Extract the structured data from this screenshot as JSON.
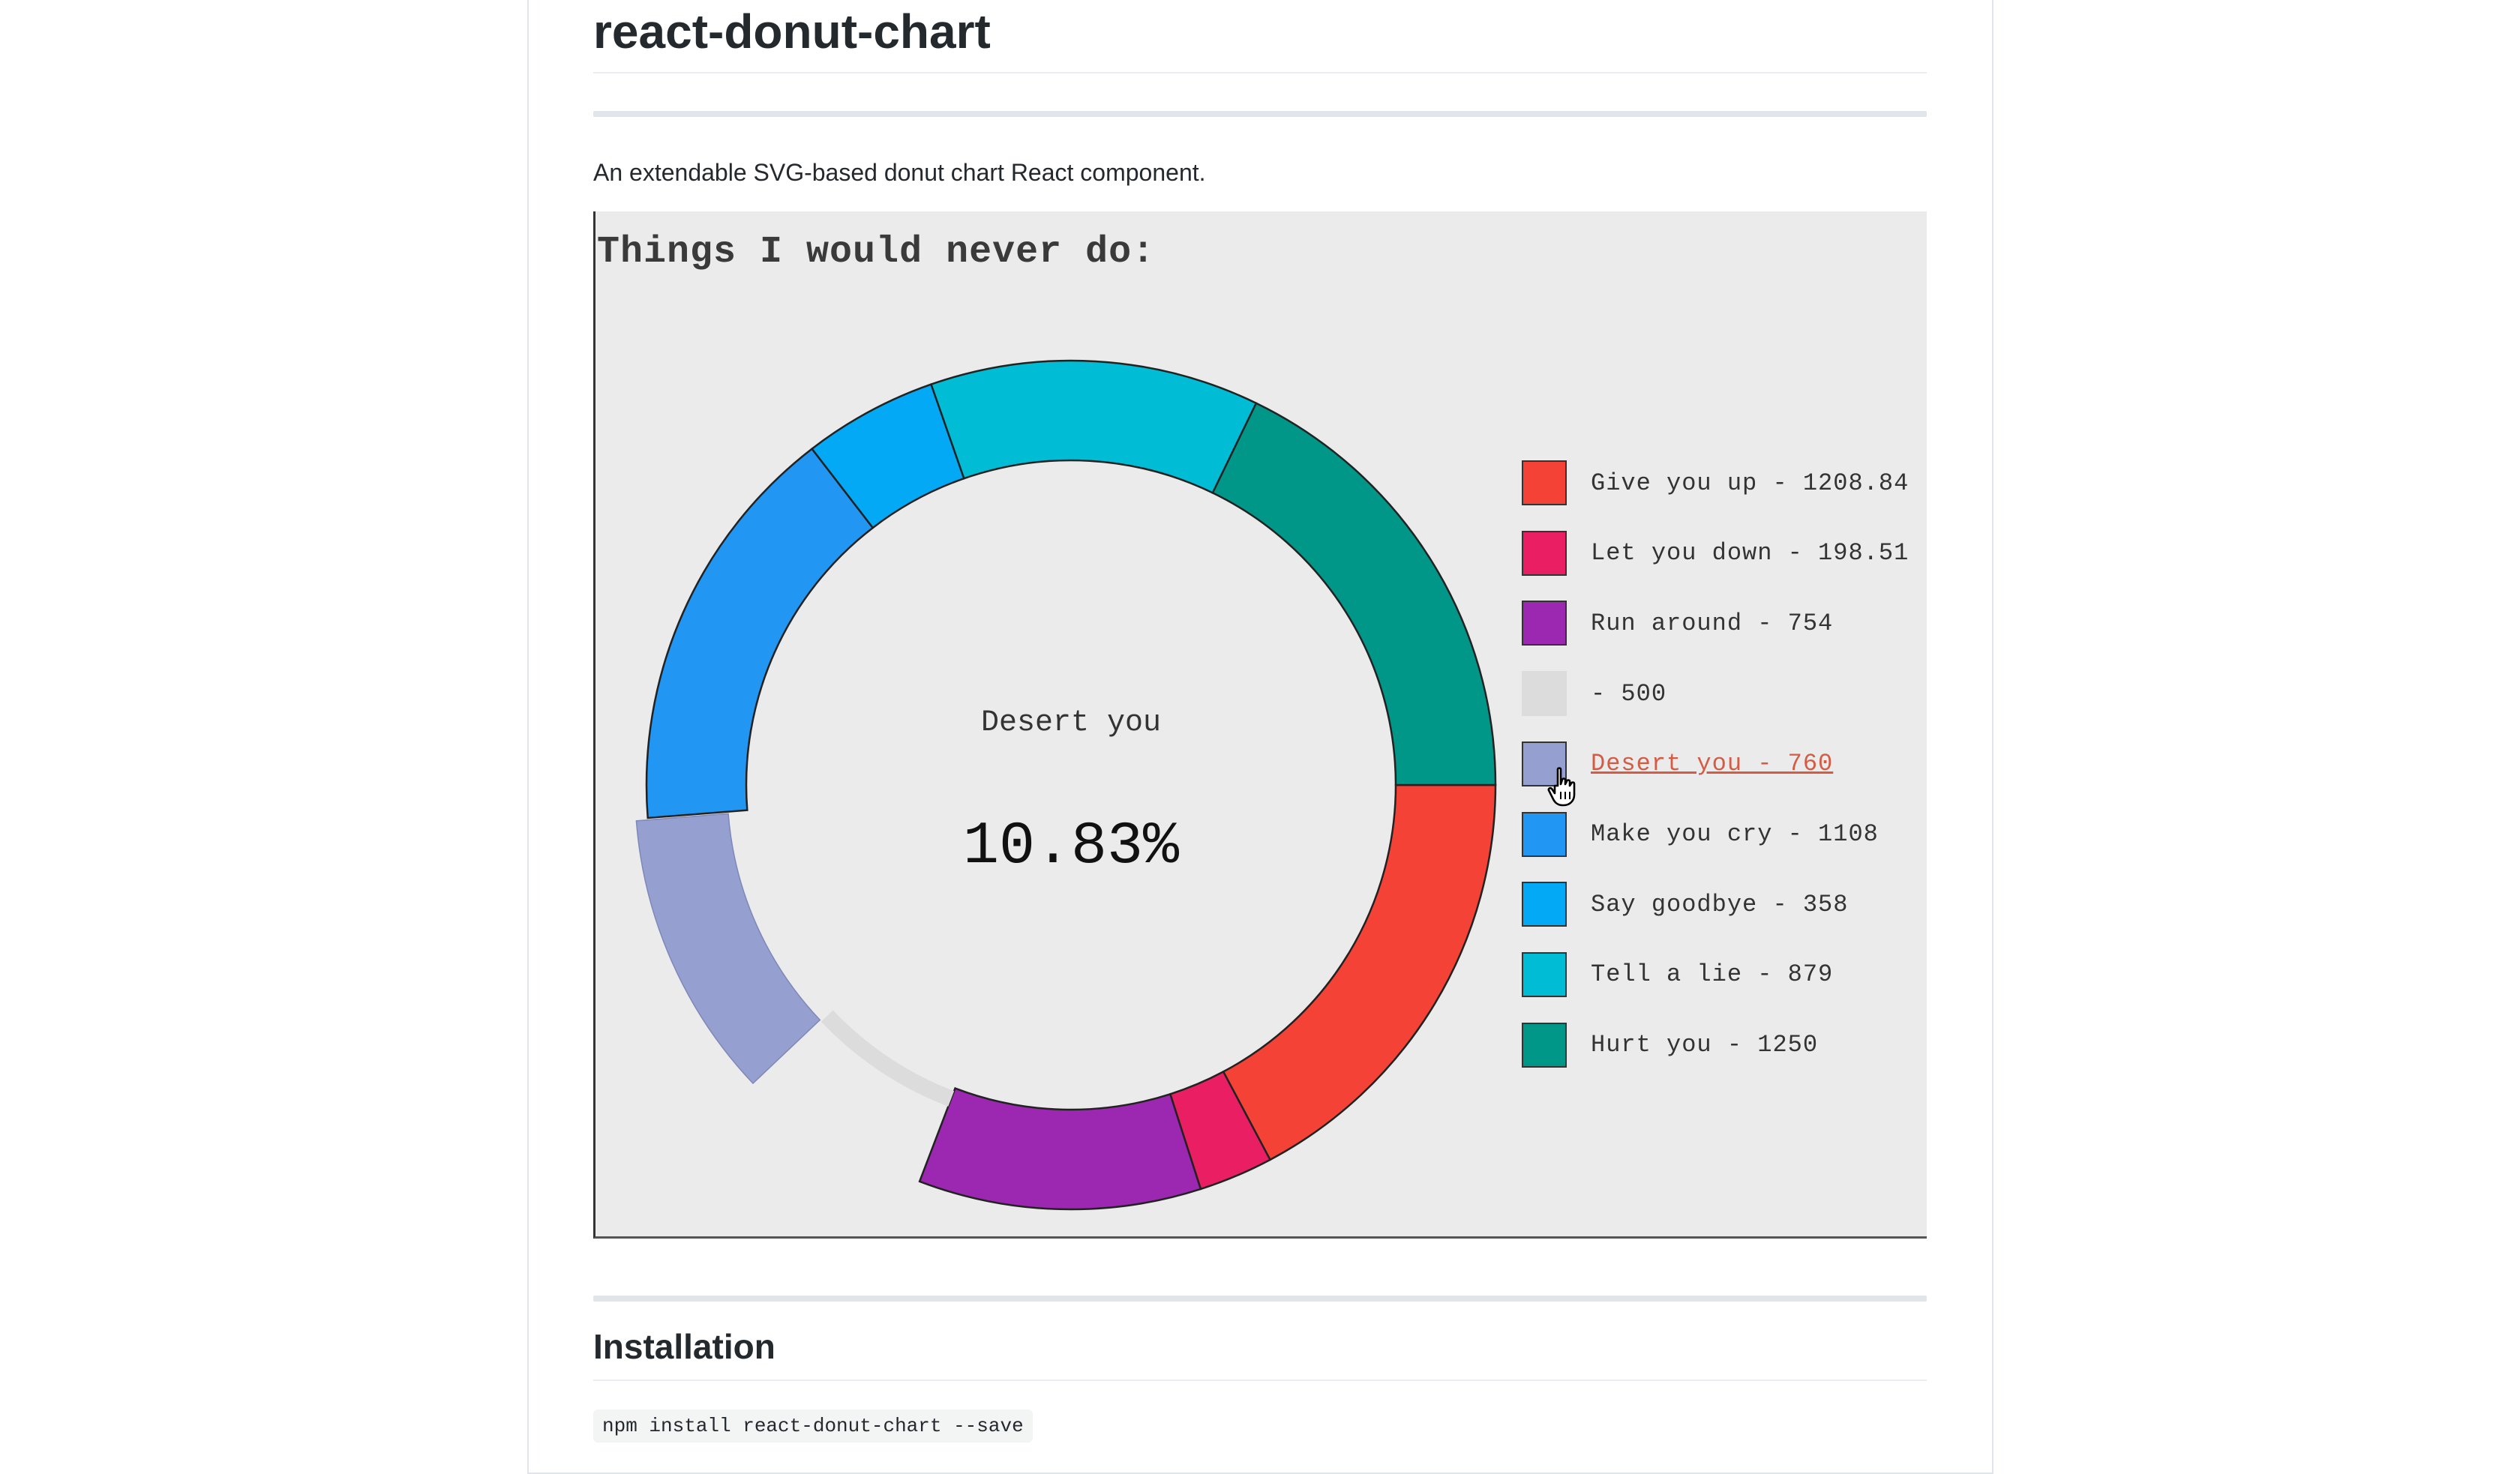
{
  "readme": {
    "title": "react-donut-chart",
    "description": "An extendable SVG-based donut chart React component.",
    "installation_heading": "Installation",
    "install_command": "npm install react-donut-chart --save"
  },
  "chart": {
    "title": "Things I would never do:",
    "center_label": "Desert you",
    "center_value": "10.83%",
    "selected_color": "#95a0d0",
    "empty_track_color": "#dcdcdc",
    "legend_text_color": "#333333",
    "legend_active_text_color": "#d45b44"
  },
  "chart_data": {
    "type": "pie",
    "variant": "donut",
    "title": "Things I would never do:",
    "selected": "Desert you",
    "selected_percent": 10.83,
    "slices": [
      {
        "label": "Give you up",
        "value": 1208.84,
        "color": "#f44336",
        "display": "Give you up - 1208.84"
      },
      {
        "label": "Let you down",
        "value": 198.51,
        "color": "#e91e63",
        "display": "Let you down - 198.51"
      },
      {
        "label": "Run around",
        "value": 754,
        "color": "#9c27b0",
        "display": "Run around - 754"
      },
      {
        "label": "",
        "value": 500,
        "color": "#dcdcdc",
        "display": "- 500",
        "empty": true
      },
      {
        "label": "Desert you",
        "value": 760,
        "color": "#95a0d0",
        "display": "Desert you - 760",
        "selected": true
      },
      {
        "label": "Make you cry",
        "value": 1108,
        "color": "#2196f3",
        "display": "Make you cry - 1108"
      },
      {
        "label": "Say goodbye",
        "value": 358,
        "color": "#03a9f4",
        "display": "Say goodbye - 358"
      },
      {
        "label": "Tell a lie",
        "value": 879,
        "color": "#00bcd4",
        "display": "Tell a lie - 879"
      },
      {
        "label": "Hurt you",
        "value": 1250,
        "color": "#009688",
        "display": "Hurt you - 1250"
      }
    ],
    "legend_position": "right"
  }
}
